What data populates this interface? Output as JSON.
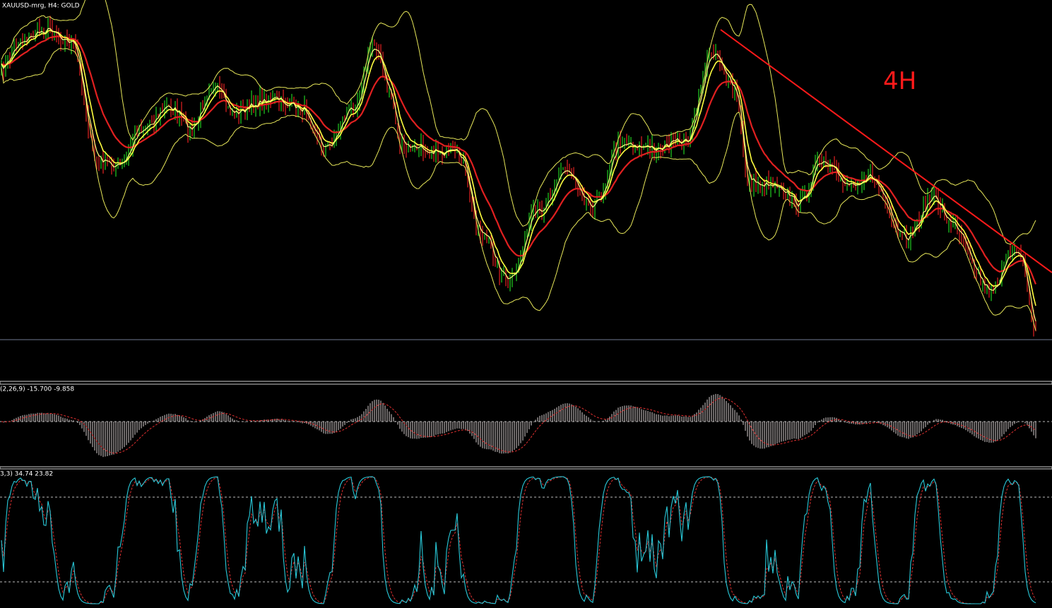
{
  "window": {
    "title": "XAUUSD-mrg, H4:  GOLD",
    "annotation": "4H"
  },
  "macd_panel": {
    "label": "(2,26,9) -15.700 -9.858"
  },
  "stochastic_panel": {
    "label": "3,3) 34.74 23.82"
  }
}
